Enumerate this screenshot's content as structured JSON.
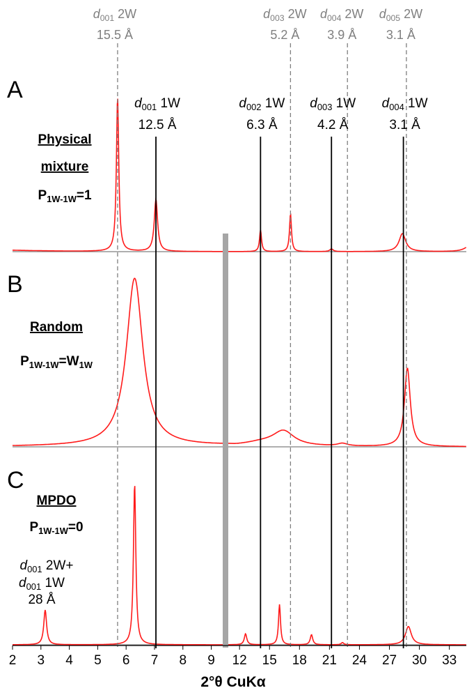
{
  "chart_data": {
    "type": "line",
    "xlabel": "2°θ CuKα",
    "x_ticks": [
      "2",
      "3",
      "4",
      "5",
      "6",
      "7",
      "8",
      "9",
      "12",
      "15",
      "18",
      "21",
      "24",
      "27",
      "30",
      "33"
    ],
    "colors": {
      "curve": "#ff1a1a",
      "axis": "#7f7f7f",
      "ref_2w": "#7f7f7f",
      "ref_1w": "#000000",
      "break_bar": "#a6a6a6"
    },
    "line_style": {
      "ref_2w": "dashed",
      "ref_1w": "solid"
    },
    "break_between": [
      9,
      12
    ],
    "reference_lines_2w": [
      {
        "id": "r2w1",
        "pre": "d",
        "sub": "001",
        "post": " 2W",
        "value": "15.5 Å",
        "x": 5.7
      },
      {
        "id": "r2w3",
        "pre": "d",
        "sub": "003",
        "post": " 2W",
        "value": "5.2 Å",
        "x": 17.1
      },
      {
        "id": "r2w4",
        "pre": "d",
        "sub": "004",
        "post": " 2W",
        "value": "3.9 Å",
        "x": 22.8
      },
      {
        "id": "r2w5",
        "pre": "d",
        "sub": "005",
        "post": " 2W",
        "value": "3.1 Å",
        "x": 28.7
      }
    ],
    "reference_lines_1w": [
      {
        "id": "r1w1",
        "pre": "d",
        "sub": "001",
        "post": " 1W",
        "value": "12.5 Å",
        "x": 7.05
      },
      {
        "id": "r1w2",
        "pre": "d",
        "sub": "002",
        "post": " 1W",
        "value": "6.3 Å",
        "x": 14.1
      },
      {
        "id": "r1w3",
        "pre": "d",
        "sub": "003",
        "post": " 1W",
        "value": "4.2 Å",
        "x": 21.2
      },
      {
        "id": "r1w4",
        "pre": "d",
        "sub": "004",
        "post": " 1W",
        "value": "3.1 Å",
        "x": 28.4
      }
    ],
    "panels": [
      {
        "letter": "A",
        "title_lines": [
          "Physical",
          "mixture"
        ],
        "equation": {
          "main": "P",
          "sub": "1W-1W",
          "rest": "=1"
        },
        "background": {
          "amplitude": 0.008,
          "decay": 0.5
        },
        "peaks": [
          {
            "x": 5.7,
            "h": 0.86,
            "w": 0.05
          },
          {
            "x": 7.05,
            "h": 0.29,
            "w": 0.07
          },
          {
            "x": 14.1,
            "h": 0.12,
            "w": 0.12
          },
          {
            "x": 17.1,
            "h": 0.21,
            "w": 0.12
          },
          {
            "x": 21.2,
            "h": 0.015,
            "w": 0.2
          },
          {
            "x": 28.3,
            "h": 0.1,
            "w": 0.4
          },
          {
            "x": 35.0,
            "h": 0.03,
            "w": 0.6
          }
        ]
      },
      {
        "letter": "B",
        "title_lines": [
          "Random"
        ],
        "equation": {
          "main": "P",
          "sub": "1W-1W",
          "rest": "=W",
          "sub2": "1W"
        },
        "background": {
          "amplitude": 0.0,
          "decay": 0.5
        },
        "peaks": [
          {
            "x": 6.3,
            "h": 0.92,
            "w": 0.35
          },
          {
            "x": 10.2,
            "h": 0.015,
            "w": 0.3
          },
          {
            "x": 16.4,
            "h": 0.08,
            "w": 1.3
          },
          {
            "x": 14.2,
            "h": 0.02,
            "w": 2.2
          },
          {
            "x": 22.3,
            "h": 0.014,
            "w": 0.6
          },
          {
            "x": 28.8,
            "h": 0.43,
            "w": 0.35
          }
        ]
      },
      {
        "letter": "C",
        "title_lines": [
          "MPDO"
        ],
        "equation": {
          "main": "P",
          "sub": "1W-1W",
          "rest": "=0"
        },
        "background": {
          "amplitude": 0.0,
          "decay": 0.5
        },
        "peak_label": {
          "pre": "d",
          "sub": "001",
          "post": " 2W+",
          "line2_pre": "d",
          "line2_sub": "001",
          "line2_post": " 1W",
          "value": "28 Å"
        },
        "peaks": [
          {
            "x": 3.15,
            "h": 0.19,
            "w": 0.06
          },
          {
            "x": 6.3,
            "h": 0.88,
            "w": 0.05
          },
          {
            "x": 12.6,
            "h": 0.06,
            "w": 0.15
          },
          {
            "x": 16.0,
            "h": 0.22,
            "w": 0.12
          },
          {
            "x": 19.2,
            "h": 0.055,
            "w": 0.15
          },
          {
            "x": 22.3,
            "h": 0.012,
            "w": 0.15
          },
          {
            "x": 28.9,
            "h": 0.1,
            "w": 0.35
          }
        ]
      }
    ]
  }
}
